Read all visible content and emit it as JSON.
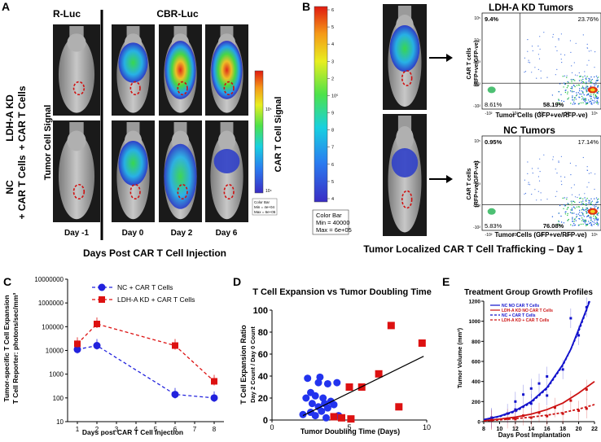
{
  "panelA": {
    "letter": "A",
    "col_rluc": "R-Luc",
    "col_cbrluc": "CBR-Luc",
    "row1_label_a": "LDH-A KD",
    "row1_label_b": "+ CAR T Cells",
    "row2_label_a": "NC",
    "row2_label_b": "+ CAR T Cells",
    "tumor_signal_label": "Tumor Cell Signal",
    "car_signal_label": "CAR T Cell Signal",
    "days": [
      "Day -1",
      "Day 0",
      "Day 2",
      "Day 6"
    ],
    "xtitle": "Days Post CAR T Cell Injection",
    "colorbar_title": "Color Bar",
    "colorbar_min": "Min = 4e+04",
    "colorbar_max": "Max = 6e+05",
    "colorbar_ticks": [
      "10⁵",
      "10⁴"
    ]
  },
  "panelB": {
    "letter": "B",
    "colorbar_title": "Color Bar",
    "colorbar_min": "Min = 40000",
    "colorbar_max": "Max = 6e+05",
    "colorbar_ticks": [
      "6",
      "5",
      "4",
      "3",
      "2",
      "10⁵",
      "9",
      "8",
      "7",
      "6",
      "5",
      "4"
    ],
    "caption": "Tumor Localized CAR T Cell Trafficking – Day 1",
    "top_title": "LDH-A KD Tumors",
    "bottom_title": "NC Tumors",
    "ylabel_a": "CAR T cells",
    "ylabel_b": "(RFP+ve/GFP-ve)",
    "xlabel": "Tumor Cells (GFP+ve/RFP-ve)",
    "top_q": [
      "9.4%",
      "23.76%",
      "8.61%",
      "58.19%"
    ],
    "bottom_q": [
      "0.95%",
      "17.14%",
      "5.83%",
      "76.08%"
    ],
    "flow_ticks_y": [
      "10⁵",
      "10⁴",
      "10³",
      "10²",
      "-10²"
    ],
    "flow_ticks_x": [
      "-10²",
      "10²",
      "10³",
      "10⁴",
      "10⁵"
    ]
  },
  "chart_data": [
    {
      "id": "C",
      "type": "line",
      "letter": "C",
      "xlabel": "Days post CAR T Cell Injection",
      "ylabel_a": "Tumor-specific T Cell Expansion",
      "ylabel_b": "T Cell Reporter: photons/sec/mm³",
      "yscale": "log",
      "ylim": [
        10,
        10000000
      ],
      "xlim": [
        0.5,
        8.5
      ],
      "xticks": [
        1,
        2,
        3,
        4,
        5,
        6,
        7,
        8
      ],
      "ytick_labels": [
        "10000000",
        "1000000",
        "100000",
        "10000",
        "1000",
        "100",
        "10"
      ],
      "series": [
        {
          "name": "NC + CAR T Cells",
          "color": "#2222dd",
          "marker": "circle",
          "x": [
            1,
            2,
            6,
            8
          ],
          "y": [
            11000,
            16000,
            140,
            100
          ]
        },
        {
          "name": "LDH-A KD + CAR T Cells",
          "color": "#dd1111",
          "marker": "square",
          "x": [
            1,
            2,
            6,
            8
          ],
          "y": [
            19000,
            130000,
            16000,
            500
          ]
        }
      ]
    },
    {
      "id": "D",
      "type": "scatter",
      "letter": "D",
      "title": "T Cell Expansion vs Tumor Doubling Time",
      "xlabel": "Tumor Doubling Time (Days)",
      "ylabel_a": "T Cell Expansion Ratio",
      "ylabel_b": "Day 2 Count / Day 0 Count",
      "xlim": [
        0,
        10
      ],
      "ylim": [
        0,
        100
      ],
      "xticks": [
        0,
        5,
        10
      ],
      "yticks": [
        0,
        20,
        40,
        60,
        80,
        100
      ],
      "series": [
        {
          "name": "NC + CAR T Cells",
          "color": "#2233ee",
          "marker": "circle",
          "points": [
            [
              2.3,
              38
            ],
            [
              3.1,
              39
            ],
            [
              3.0,
              34
            ],
            [
              2.5,
              25
            ],
            [
              3.6,
              33
            ],
            [
              4.2,
              34
            ],
            [
              2.2,
              20
            ],
            [
              2.8,
              22
            ],
            [
              3.3,
              20
            ],
            [
              3.8,
              17
            ],
            [
              2.6,
              15
            ],
            [
              3.4,
              15
            ],
            [
              4.0,
              14
            ],
            [
              3.0,
              12
            ],
            [
              3.6,
              11
            ],
            [
              3.2,
              8
            ],
            [
              2.5,
              7
            ],
            [
              2.0,
              5
            ],
            [
              2.8,
              4
            ],
            [
              4.3,
              4
            ],
            [
              3.5,
              2
            ]
          ]
        },
        {
          "name": "LDH-A KD + CAR T Cells",
          "color": "#dd1111",
          "marker": "square",
          "points": [
            [
              7.7,
              86
            ],
            [
              9.7,
              70
            ],
            [
              6.9,
              42
            ],
            [
              5.0,
              30
            ],
            [
              5.8,
              30
            ],
            [
              8.2,
              12
            ],
            [
              4.0,
              3
            ],
            [
              4.5,
              2
            ],
            [
              5.1,
              1
            ]
          ]
        }
      ],
      "fit_line": {
        "x": [
          2.0,
          9.8
        ],
        "y": [
          4,
          58
        ]
      }
    },
    {
      "id": "E",
      "type": "line",
      "letter": "E",
      "title": "Treatment Group Growth Profiles",
      "xlabel": "Days Post Implantation",
      "ylabel": "Tumor Volume (mm³)",
      "xlim": [
        8,
        22
      ],
      "ylim": [
        0,
        1200
      ],
      "xticks": [
        8,
        10,
        12,
        14,
        16,
        18,
        20,
        22
      ],
      "yticks": [
        0,
        200,
        400,
        600,
        800,
        1000,
        1200
      ],
      "series": [
        {
          "name": "NC NO CAR T Cells",
          "color": "#1111cc",
          "dash": false,
          "points": [
            [
              9,
              40
            ],
            [
              11,
              80
            ],
            [
              12,
              200
            ],
            [
              13,
              270
            ],
            [
              14,
              330
            ],
            [
              15,
              380
            ],
            [
              16,
              450
            ],
            [
              19,
              1030
            ],
            [
              21,
              1140
            ]
          ],
          "curve": [
            [
              8,
              20
            ],
            [
              10,
              55
            ],
            [
              12,
              110
            ],
            [
              14,
              200
            ],
            [
              16,
              340
            ],
            [
              18,
              570
            ],
            [
              19,
              720
            ],
            [
              20,
              920
            ],
            [
              21,
              1120
            ],
            [
              21.4,
              1200
            ]
          ]
        },
        {
          "name": "LDH-A KD NO CAR T Cells",
          "color": "#cc1111",
          "dash": false,
          "points": [
            [
              9,
              20
            ],
            [
              11,
              30
            ],
            [
              13,
              60
            ],
            [
              15,
              90
            ],
            [
              17,
              140
            ],
            [
              19,
              210
            ],
            [
              21,
              320
            ]
          ],
          "curve": [
            [
              8,
              10
            ],
            [
              10,
              25
            ],
            [
              12,
              45
            ],
            [
              14,
              75
            ],
            [
              16,
              120
            ],
            [
              18,
              185
            ],
            [
              20,
              285
            ],
            [
              22,
              400
            ]
          ]
        },
        {
          "name": "NC + CAR T Cells",
          "color": "#1111cc",
          "dash": true,
          "points": [
            [
              9,
              30
            ],
            [
              12,
              120
            ],
            [
              14,
              180
            ],
            [
              16,
              260
            ],
            [
              18,
              520
            ],
            [
              20,
              860
            ]
          ],
          "curve": [
            [
              8,
              20
            ],
            [
              10,
              50
            ],
            [
              12,
              100
            ],
            [
              14,
              190
            ],
            [
              16,
              330
            ],
            [
              18,
              560
            ],
            [
              19,
              720
            ],
            [
              20,
              900
            ],
            [
              21,
              1110
            ],
            [
              21.3,
              1200
            ]
          ]
        },
        {
          "name": "LDH-A KD + CAR T Cells",
          "color": "#cc1111",
          "dash": true,
          "points": [
            [
              9,
              15
            ],
            [
              12,
              25
            ],
            [
              14,
              40
            ],
            [
              16,
              55
            ],
            [
              18,
              80
            ],
            [
              20,
              110
            ],
            [
              21,
              130
            ]
          ],
          "curve": [
            [
              8,
              8
            ],
            [
              10,
              18
            ],
            [
              12,
              30
            ],
            [
              14,
              45
            ],
            [
              16,
              65
            ],
            [
              18,
              90
            ],
            [
              20,
              125
            ],
            [
              22,
              170
            ]
          ]
        }
      ]
    }
  ]
}
